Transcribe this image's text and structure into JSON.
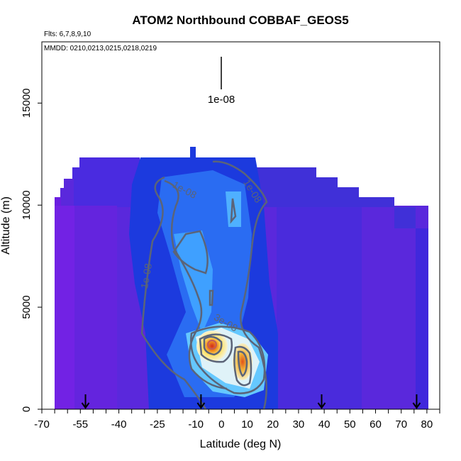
{
  "chart_data": {
    "type": "heatmap",
    "title": "ATOM2 Northbound COBBAF_GEOS5",
    "subtitle_flights": "Flts: 6,7,8,9,10",
    "subtitle_dates": "MMDD: 0210,0213,0215,0218,0219",
    "xlabel": "Latitude (deg N)",
    "ylabel": "Altitude (m)",
    "xlim": [
      -70,
      85
    ],
    "ylim": [
      0,
      18000
    ],
    "x_ticks": [
      -70,
      -55,
      -40,
      -25,
      -10,
      0,
      10,
      20,
      30,
      40,
      50,
      60,
      70,
      80
    ],
    "y_ticks": [
      0,
      5000,
      10000,
      15000
    ],
    "legend_key_label": "1e-08",
    "contour_labels": [
      {
        "text": "1e-08",
        "x": -15,
        "y": 10600
      },
      {
        "text": "1e-08",
        "x": 11,
        "y": 10600
      },
      {
        "text": "1e-08",
        "x": -28,
        "y": 6500
      },
      {
        "text": "3e-08",
        "x": 1,
        "y": 4100
      }
    ],
    "flight_marker_latitudes": [
      -53,
      -8,
      39,
      76
    ],
    "grid": false,
    "colors": {
      "background_low": "#6a1ee0",
      "mid": "#2f8cff",
      "high": "#ffe36a",
      "peak": "#d22a1e",
      "contour": "#5b6478"
    }
  }
}
